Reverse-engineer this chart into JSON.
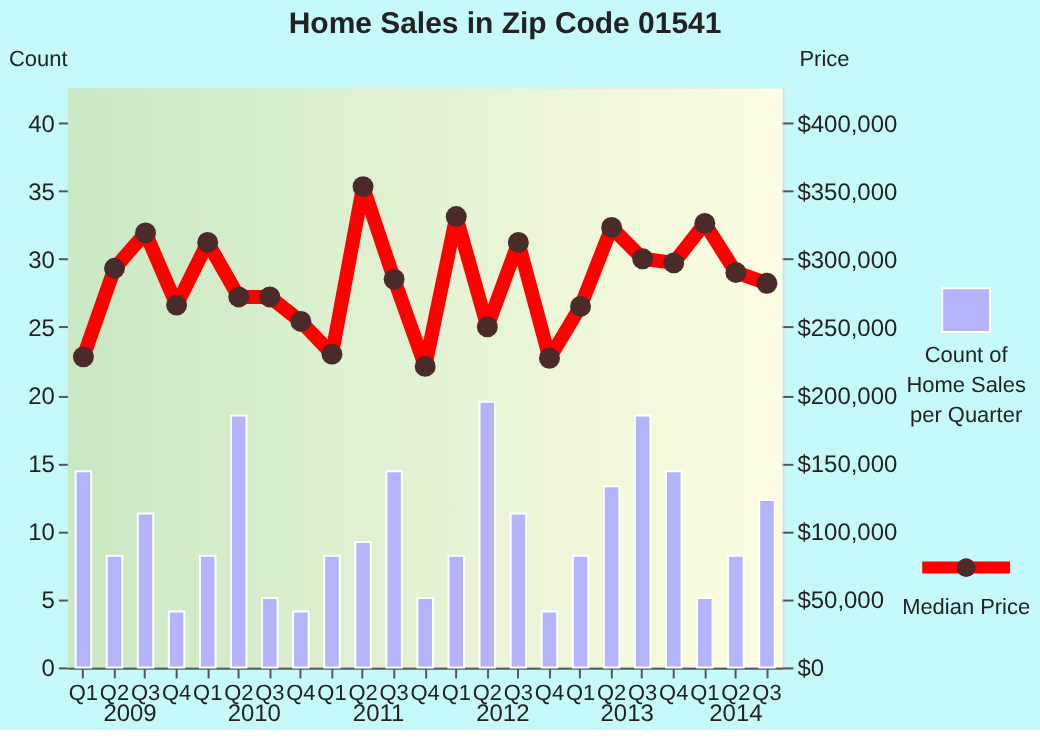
{
  "chart_data": {
    "type": "bar",
    "title": "Home Sales in Zip Code 01541",
    "categories": [
      "Q1",
      "Q2",
      "Q3",
      "Q4",
      "Q1",
      "Q2",
      "Q3",
      "Q4",
      "Q1",
      "Q2",
      "Q3",
      "Q4",
      "Q1",
      "Q2",
      "Q3",
      "Q4",
      "Q1",
      "Q2",
      "Q3",
      "Q4",
      "Q1",
      "Q2",
      "Q3"
    ],
    "annotations": [
      "2009",
      "2010",
      "2011",
      "2012",
      "2013",
      "2014"
    ],
    "ylabel": "Count",
    "y2label": "Price",
    "ylim": [
      0,
      42.5
    ],
    "yticks": [
      0,
      5,
      10,
      15,
      20,
      25,
      30,
      35,
      40
    ],
    "y2lim": [
      0,
      425000
    ],
    "y2ticks": [
      {
        "value": 0,
        "label": "$0"
      },
      {
        "value": 50000,
        "label": "$50,000"
      },
      {
        "value": 100000,
        "label": "$100,000"
      },
      {
        "value": 150000,
        "label": "$150,000"
      },
      {
        "value": 200000,
        "label": "$200,000"
      },
      {
        "value": 250000,
        "label": "$250,000"
      },
      {
        "value": 300000,
        "label": "$300,000"
      },
      {
        "value": 350000,
        "label": "$350,000"
      },
      {
        "value": 400000,
        "label": "$400,000"
      }
    ],
    "series": [
      {
        "name": "Count of Home Sales per Quarter",
        "color": "#b4b4fa",
        "values": [
          14.4,
          8.2,
          11.3,
          4.1,
          8.2,
          18.5,
          5.1,
          4.1,
          8.2,
          9.2,
          14.4,
          5.1,
          8.2,
          19.5,
          11.3,
          4.1,
          8.2,
          13.3,
          18.5,
          14.4,
          5.1,
          8.2,
          12.3
        ]
      },
      {
        "name": "Median Price",
        "type": "line",
        "axis": "y2",
        "color": "#ff0000",
        "marker": "circle",
        "values": [
          228000,
          293000,
          319000,
          266000,
          312000,
          272000,
          272000,
          254000,
          230000,
          353000,
          285000,
          221000,
          331000,
          250000,
          312000,
          227000,
          265000,
          323000,
          300000,
          297000,
          326000,
          290000,
          282000
        ]
      }
    ],
    "grid": "y",
    "legend": "right"
  }
}
